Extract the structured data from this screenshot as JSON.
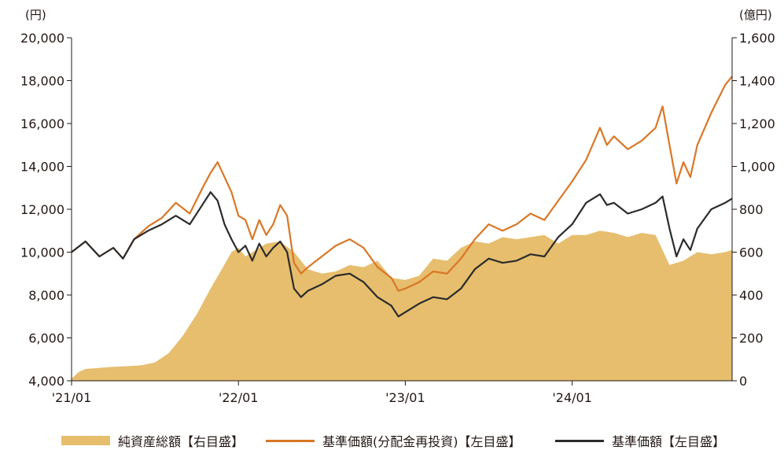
{
  "chart_data": {
    "type": "line",
    "left_axis": {
      "unit": "(円)",
      "ticks": [
        "4,000",
        "6,000",
        "8,000",
        "10,000",
        "12,000",
        "14,000",
        "16,000",
        "18,000",
        "20,000"
      ],
      "ylim": [
        4000,
        20000
      ]
    },
    "right_axis": {
      "unit": "(億円)",
      "ticks": [
        "0",
        "200",
        "400",
        "600",
        "800",
        "1,000",
        "1,200",
        "1,400",
        "1,600"
      ],
      "ylim": [
        0,
        1600
      ]
    },
    "x_ticks": [
      "'21/01",
      "'22/01",
      "'23/01",
      "'24/01"
    ],
    "x_tick_months": [
      0,
      12,
      24,
      36
    ],
    "x_range_months": [
      0,
      47.5
    ],
    "series": [
      {
        "name": "純資産総額【右目盛】",
        "kind": "area",
        "axis": "right",
        "color": "#E6BE6E",
        "points": [
          [
            0,
            10
          ],
          [
            0.5,
            40
          ],
          [
            1,
            55
          ],
          [
            2,
            60
          ],
          [
            3,
            65
          ],
          [
            4,
            68
          ],
          [
            5,
            72
          ],
          [
            6,
            85
          ],
          [
            7,
            130
          ],
          [
            8,
            210
          ],
          [
            9,
            310
          ],
          [
            10,
            430
          ],
          [
            10.8,
            520
          ],
          [
            11.5,
            600
          ],
          [
            12,
            620
          ],
          [
            12.5,
            580
          ],
          [
            13,
            600
          ],
          [
            14,
            640
          ],
          [
            15,
            650
          ],
          [
            16,
            600
          ],
          [
            17,
            520
          ],
          [
            18,
            500
          ],
          [
            19,
            510
          ],
          [
            20,
            540
          ],
          [
            21,
            530
          ],
          [
            22,
            560
          ],
          [
            23,
            480
          ],
          [
            24,
            470
          ],
          [
            25,
            490
          ],
          [
            26,
            570
          ],
          [
            27,
            560
          ],
          [
            28,
            620
          ],
          [
            29,
            650
          ],
          [
            30,
            640
          ],
          [
            31,
            670
          ],
          [
            32,
            660
          ],
          [
            33,
            670
          ],
          [
            34,
            680
          ],
          [
            35,
            640
          ],
          [
            36,
            680
          ],
          [
            37,
            680
          ],
          [
            38,
            700
          ],
          [
            39,
            690
          ],
          [
            40,
            670
          ],
          [
            41,
            690
          ],
          [
            42,
            680
          ],
          [
            43,
            540
          ],
          [
            44,
            560
          ],
          [
            45,
            600
          ],
          [
            46,
            590
          ],
          [
            47,
            600
          ],
          [
            47.5,
            610
          ]
        ]
      },
      {
        "name": "基準価額(分配金再投資)【左目盛】",
        "kind": "line",
        "axis": "left",
        "color": "#D97726",
        "points": [
          [
            0,
            10000
          ],
          [
            1,
            10500
          ],
          [
            2,
            9800
          ],
          [
            3,
            10200
          ],
          [
            3.7,
            9700
          ],
          [
            4.5,
            10600
          ],
          [
            5.5,
            11200
          ],
          [
            6.5,
            11600
          ],
          [
            7.5,
            12300
          ],
          [
            8.5,
            11800
          ],
          [
            9.5,
            13100
          ],
          [
            10,
            13700
          ],
          [
            10.5,
            14200
          ],
          [
            11,
            13500
          ],
          [
            11.5,
            12800
          ],
          [
            12,
            11700
          ],
          [
            12.5,
            11500
          ],
          [
            13,
            10600
          ],
          [
            13.5,
            11500
          ],
          [
            14,
            10800
          ],
          [
            14.5,
            11300
          ],
          [
            15,
            12200
          ],
          [
            15.5,
            11700
          ],
          [
            16,
            9500
          ],
          [
            16.5,
            9000
          ],
          [
            17,
            9300
          ],
          [
            18,
            9800
          ],
          [
            19,
            10300
          ],
          [
            20,
            10600
          ],
          [
            21,
            10200
          ],
          [
            22,
            9300
          ],
          [
            23,
            8800
          ],
          [
            23.5,
            8200
          ],
          [
            24,
            8300
          ],
          [
            25,
            8600
          ],
          [
            26,
            9100
          ],
          [
            27,
            9000
          ],
          [
            28,
            9700
          ],
          [
            29,
            10600
          ],
          [
            30,
            11300
          ],
          [
            31,
            11000
          ],
          [
            32,
            11300
          ],
          [
            33,
            11800
          ],
          [
            34,
            11500
          ],
          [
            35,
            12400
          ],
          [
            36,
            13300
          ],
          [
            37,
            14300
          ],
          [
            38,
            15800
          ],
          [
            38.5,
            15000
          ],
          [
            39,
            15400
          ],
          [
            40,
            14800
          ],
          [
            41,
            15200
          ],
          [
            42,
            15800
          ],
          [
            42.5,
            16800
          ],
          [
            43,
            15000
          ],
          [
            43.5,
            13200
          ],
          [
            44,
            14200
          ],
          [
            44.5,
            13500
          ],
          [
            45,
            15000
          ],
          [
            46,
            16500
          ],
          [
            47,
            17800
          ],
          [
            47.5,
            18200
          ]
        ]
      },
      {
        "name": "基準価額【左目盛】",
        "kind": "line",
        "axis": "left",
        "color": "#2B2B2B",
        "points": [
          [
            0,
            10000
          ],
          [
            1,
            10500
          ],
          [
            2,
            9800
          ],
          [
            3,
            10200
          ],
          [
            3.7,
            9700
          ],
          [
            4.5,
            10600
          ],
          [
            5.5,
            11000
          ],
          [
            6.5,
            11300
          ],
          [
            7.5,
            11700
          ],
          [
            8.5,
            11300
          ],
          [
            9.5,
            12300
          ],
          [
            10,
            12800
          ],
          [
            10.5,
            12400
          ],
          [
            11,
            11300
          ],
          [
            11.5,
            10600
          ],
          [
            12,
            10000
          ],
          [
            12.5,
            10300
          ],
          [
            13,
            9600
          ],
          [
            13.5,
            10400
          ],
          [
            14,
            9800
          ],
          [
            14.5,
            10200
          ],
          [
            15,
            10500
          ],
          [
            15.5,
            10000
          ],
          [
            16,
            8300
          ],
          [
            16.5,
            7900
          ],
          [
            17,
            8200
          ],
          [
            18,
            8500
          ],
          [
            19,
            8900
          ],
          [
            20,
            9000
          ],
          [
            21,
            8600
          ],
          [
            22,
            7900
          ],
          [
            23,
            7500
          ],
          [
            23.5,
            7000
          ],
          [
            24,
            7200
          ],
          [
            25,
            7600
          ],
          [
            26,
            7900
          ],
          [
            27,
            7800
          ],
          [
            28,
            8300
          ],
          [
            29,
            9200
          ],
          [
            30,
            9700
          ],
          [
            31,
            9500
          ],
          [
            32,
            9600
          ],
          [
            33,
            9900
          ],
          [
            34,
            9800
          ],
          [
            35,
            10700
          ],
          [
            36,
            11300
          ],
          [
            37,
            12300
          ],
          [
            38,
            12700
          ],
          [
            38.5,
            12200
          ],
          [
            39,
            12300
          ],
          [
            40,
            11800
          ],
          [
            41,
            12000
          ],
          [
            42,
            12300
          ],
          [
            42.5,
            12600
          ],
          [
            43,
            11100
          ],
          [
            43.5,
            9800
          ],
          [
            44,
            10600
          ],
          [
            44.5,
            10100
          ],
          [
            45,
            11100
          ],
          [
            46,
            12000
          ],
          [
            47,
            12300
          ],
          [
            47.5,
            12500
          ]
        ]
      }
    ]
  },
  "legend": [
    {
      "label": "純資産総額【右目盛】",
      "kind": "area",
      "color": "#E6BE6E"
    },
    {
      "label": "基準価額(分配金再投資)【左目盛】",
      "kind": "line",
      "color": "#D97726"
    },
    {
      "label": "基準価額【左目盛】",
      "kind": "line",
      "color": "#2B2B2B"
    }
  ]
}
